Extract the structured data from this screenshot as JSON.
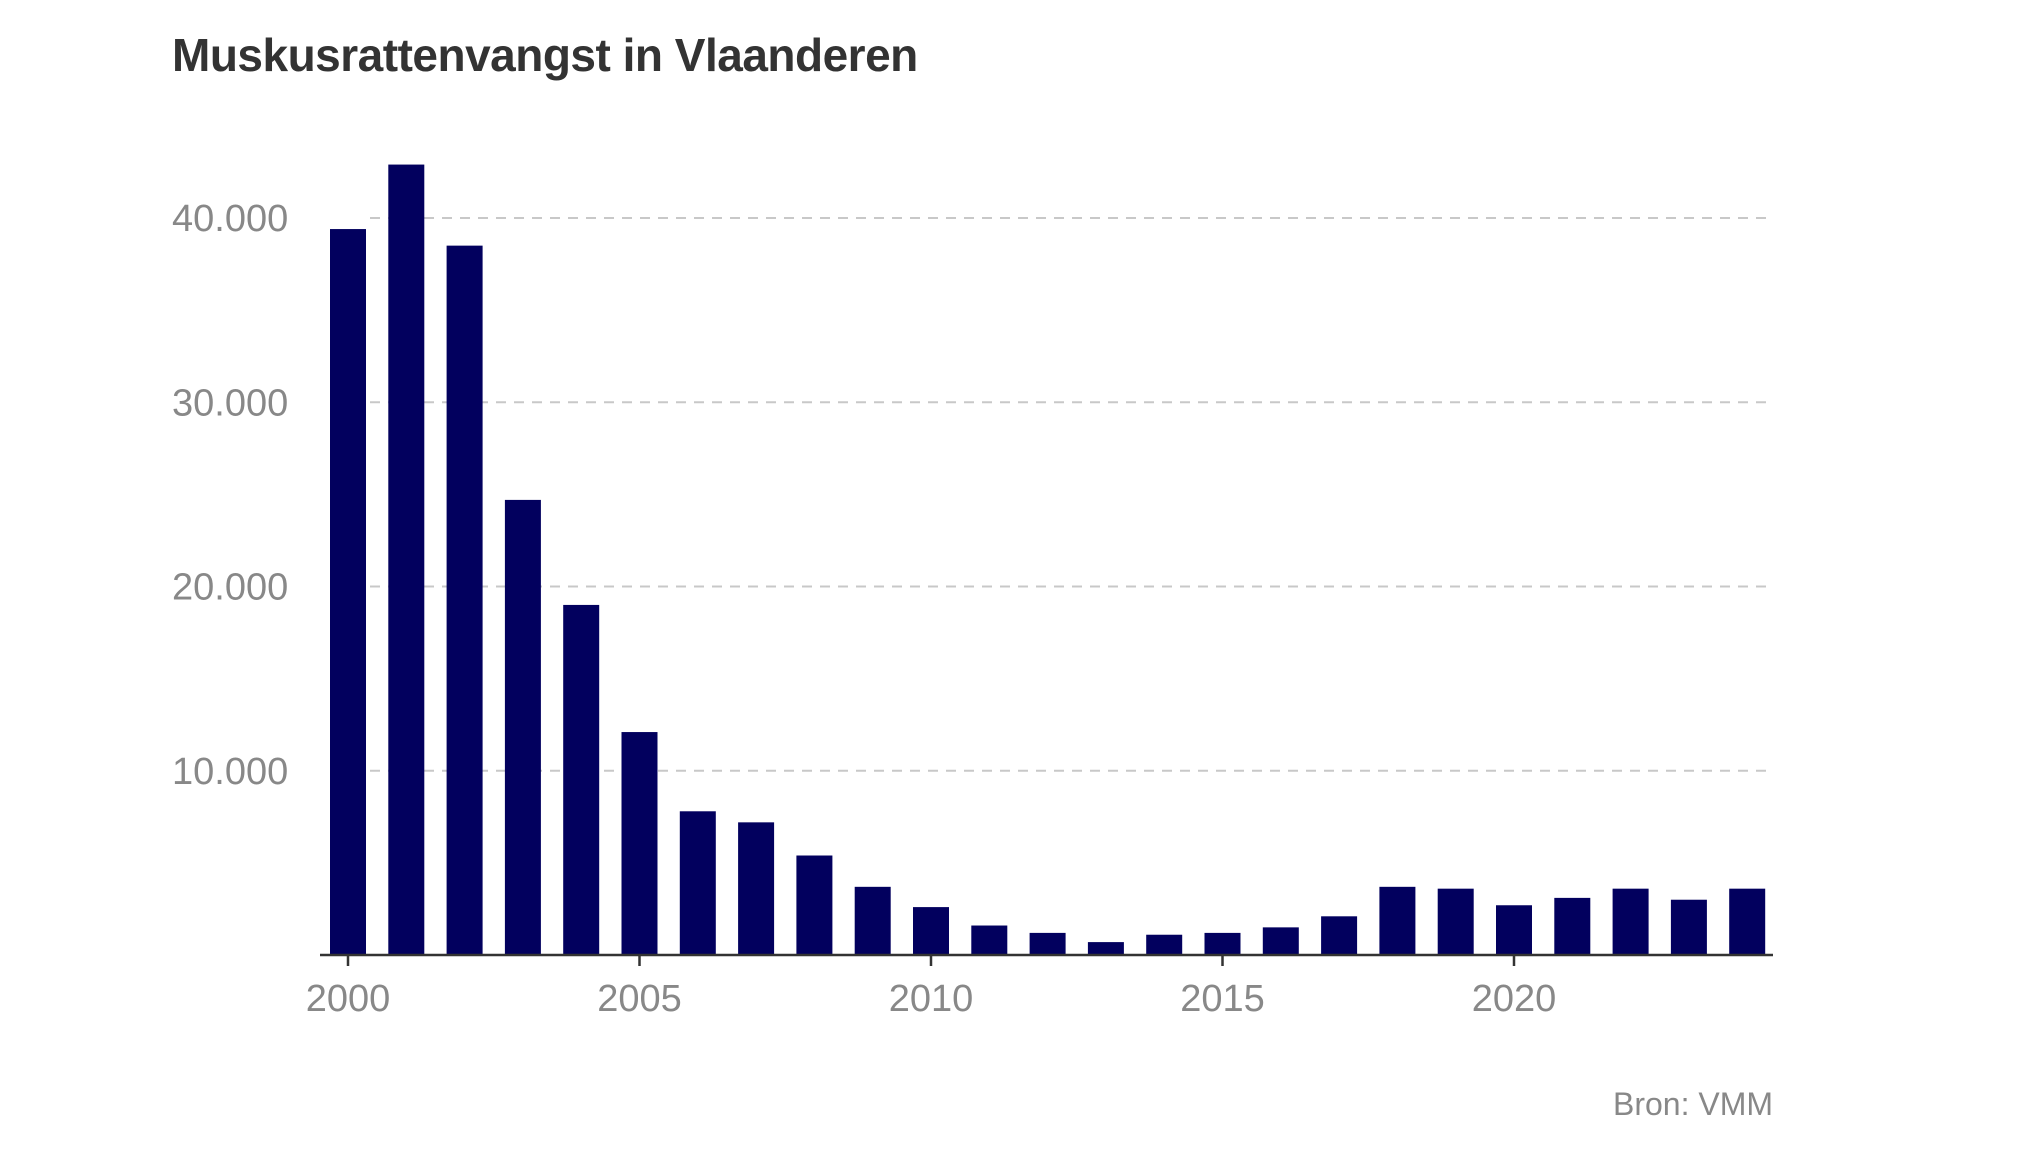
{
  "chart_data": {
    "type": "bar",
    "title": "Muskusrattenvangst in Vlaanderen",
    "source": "Bron: VMM",
    "xlabel": "",
    "ylabel": "",
    "categories": [
      2000,
      2001,
      2002,
      2003,
      2004,
      2005,
      2006,
      2007,
      2008,
      2009,
      2010,
      2011,
      2012,
      2013,
      2014,
      2015,
      2016,
      2017,
      2018,
      2019,
      2020,
      2021,
      2022,
      2023,
      2024
    ],
    "values": [
      39400,
      42900,
      38500,
      24700,
      19000,
      12100,
      7800,
      7200,
      5400,
      3700,
      2600,
      1600,
      1200,
      700,
      1100,
      1200,
      1500,
      2100,
      3700,
      3600,
      2700,
      3100,
      3600,
      3000,
      3600
    ],
    "ylim": [
      0,
      44000
    ],
    "yticks": [
      10000,
      20000,
      30000,
      40000
    ],
    "ytick_labels": [
      "10.000",
      "20.000",
      "30.000",
      "40.000"
    ],
    "xticks": [
      2000,
      2005,
      2010,
      2015,
      2020
    ],
    "xtick_labels": [
      "2000",
      "2005",
      "2010",
      "2015",
      "2020"
    ],
    "grid": "horizontal dashed",
    "legend": "none",
    "colors": {
      "bar": "#02005e",
      "grid": "#c8c8c8",
      "axis": "#333333",
      "tick_text": "#888888",
      "title": "#333333"
    }
  }
}
